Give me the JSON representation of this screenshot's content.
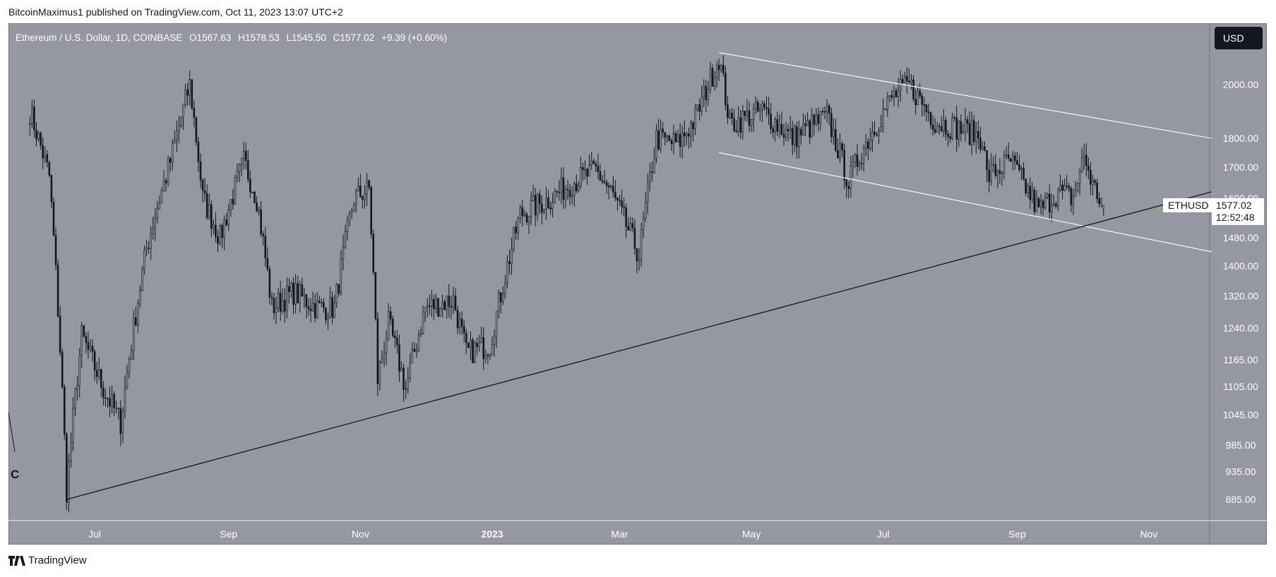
{
  "header": {
    "published_line": "BitcoinMaximus1 published on TradingView.com, Oct 11, 2023 13:07 UTC+2"
  },
  "legend": {
    "symbol_title": "Ethereum / U.S. Dollar, 1D, COINBASE",
    "open_label": "O",
    "open": "1567.63",
    "high_label": "H",
    "high": "1578.53",
    "low_label": "L",
    "low": "1545.50",
    "close_label": "C",
    "close": "1577.02",
    "change": "+9.39 (+0.60%)"
  },
  "currency_button": "USD",
  "last_price": {
    "symbol": "ETHUSD",
    "price": "1577.02",
    "countdown": "12:52:48"
  },
  "wave_marker": "C",
  "footer": {
    "brand": "TradingView"
  },
  "colors": {
    "chart_background": "#9598a1",
    "candle": "#131722",
    "channel_lines": "#ffffff",
    "support_line": "#131722"
  },
  "chart_data": {
    "type": "candlestick",
    "title": "Ethereum / U.S. Dollar, 1D, COINBASE",
    "scale": "log",
    "y_ticks": [
      885,
      935,
      985,
      1045,
      1105,
      1165,
      1240,
      1320,
      1400,
      1480,
      1600,
      1700,
      1800,
      2000
    ],
    "y_tick_labels": [
      "885.00",
      "935.00",
      "985.00",
      "1045.00",
      "1105.00",
      "1165.00",
      "1240.00",
      "1320.00",
      "1400.00",
      "1480.00",
      "1600.00",
      "1700.00",
      "1800.00",
      "2000.00"
    ],
    "x_tick_labels": [
      "Jul",
      "Sep",
      "Nov",
      "2023",
      "Mar",
      "May",
      "Jul",
      "Sep",
      "Nov"
    ],
    "x_tick_dates": [
      "2022-07-01",
      "2022-09-01",
      "2022-11-01",
      "2023-01-01",
      "2023-03-01",
      "2023-05-01",
      "2023-07-01",
      "2023-09-01",
      "2023-11-01"
    ],
    "series": [
      {
        "close_path": [
          [
            "2022-06-01",
            1900
          ],
          [
            "2022-06-10",
            1670
          ],
          [
            "2022-06-18",
            900
          ],
          [
            "2022-06-25",
            1220
          ],
          [
            "2022-07-05",
            1100
          ],
          [
            "2022-07-13",
            1030
          ],
          [
            "2022-07-25",
            1450
          ],
          [
            "2022-08-05",
            1720
          ],
          [
            "2022-08-14",
            2000
          ],
          [
            "2022-08-20",
            1600
          ],
          [
            "2022-08-28",
            1480
          ],
          [
            "2022-09-08",
            1720
          ],
          [
            "2022-09-14",
            1600
          ],
          [
            "2022-09-21",
            1290
          ],
          [
            "2022-10-01",
            1330
          ],
          [
            "2022-10-12",
            1290
          ],
          [
            "2022-10-20",
            1290
          ],
          [
            "2022-10-29",
            1600
          ],
          [
            "2022-11-05",
            1630
          ],
          [
            "2022-11-09",
            1120
          ],
          [
            "2022-11-14",
            1250
          ],
          [
            "2022-11-22",
            1100
          ],
          [
            "2022-12-01",
            1290
          ],
          [
            "2022-12-14",
            1310
          ],
          [
            "2022-12-20",
            1180
          ],
          [
            "2022-12-31",
            1200
          ],
          [
            "2023-01-14",
            1550
          ],
          [
            "2023-01-28",
            1600
          ],
          [
            "2023-02-07",
            1650
          ],
          [
            "2023-02-18",
            1690
          ],
          [
            "2023-02-25",
            1620
          ],
          [
            "2023-03-10",
            1430
          ],
          [
            "2023-03-18",
            1800
          ],
          [
            "2023-03-28",
            1780
          ],
          [
            "2023-04-05",
            1870
          ],
          [
            "2023-04-16",
            2110
          ],
          [
            "2023-04-21",
            1850
          ],
          [
            "2023-05-06",
            1900
          ],
          [
            "2023-05-20",
            1800
          ],
          [
            "2023-06-05",
            1880
          ],
          [
            "2023-06-15",
            1650
          ],
          [
            "2023-06-20",
            1740
          ],
          [
            "2023-07-05",
            1950
          ],
          [
            "2023-07-13",
            2000
          ],
          [
            "2023-07-25",
            1860
          ],
          [
            "2023-08-08",
            1830
          ],
          [
            "2023-08-16",
            1800
          ],
          [
            "2023-08-18",
            1670
          ],
          [
            "2023-08-29",
            1720
          ],
          [
            "2023-09-11",
            1560
          ],
          [
            "2023-09-20",
            1620
          ],
          [
            "2023-09-27",
            1600
          ],
          [
            "2023-10-02",
            1740
          ],
          [
            "2023-10-06",
            1640
          ],
          [
            "2023-10-11",
            1577
          ]
        ]
      }
    ],
    "last": {
      "open": 1567.63,
      "high": 1578.53,
      "low": 1545.5,
      "close": 1577.02
    },
    "trendlines": [
      {
        "name": "channel_upper",
        "points": [
          [
            "2023-04-16",
            2130
          ],
          [
            "2023-11-30",
            1800
          ]
        ]
      },
      {
        "name": "channel_lower",
        "points": [
          [
            "2023-04-16",
            1750
          ],
          [
            "2023-11-30",
            1440
          ]
        ]
      },
      {
        "name": "ascending_support",
        "points": [
          [
            "2022-06-18",
            885
          ],
          [
            "2023-11-30",
            1620
          ]
        ]
      }
    ]
  }
}
